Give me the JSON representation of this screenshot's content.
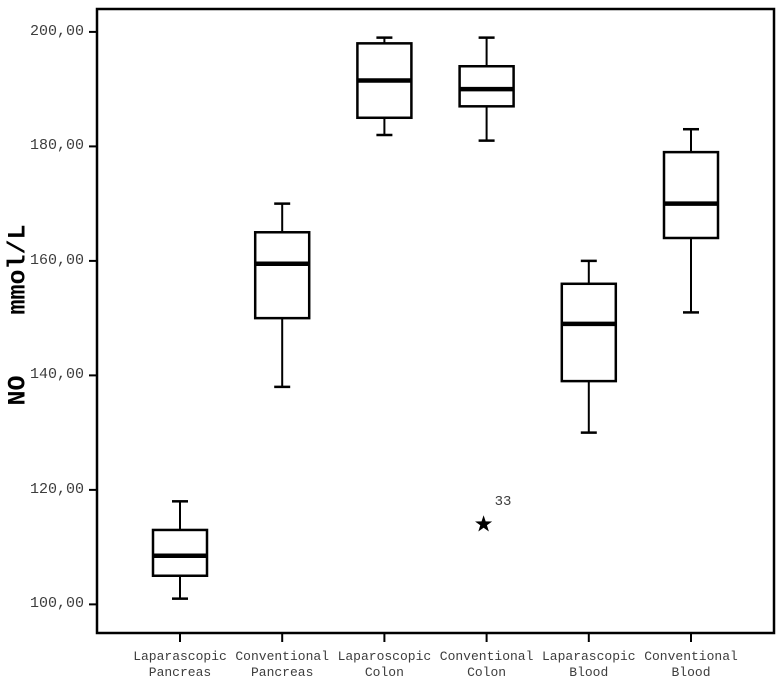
{
  "chart_data": {
    "type": "boxplot",
    "title": "",
    "xlabel": "",
    "ylabel": "NO mmol/L",
    "ylim": [
      95,
      204
    ],
    "yticks": [
      100,
      120,
      140,
      160,
      180,
      200
    ],
    "ytick_labels": [
      "100,00",
      "120,00",
      "140,00",
      "160,00",
      "180,00",
      "200,00"
    ],
    "grid": false,
    "legend": "none",
    "colors": {
      "line": "#000000",
      "box_fill": "#ffffff",
      "text": "#3d3d3d"
    },
    "series": [
      {
        "category": "Laparascopic Pancreas",
        "label_lines": [
          "Laparascopic",
          "Pancreas"
        ],
        "min": 101,
        "q1": 105,
        "median": 108.5,
        "q3": 113,
        "max": 118,
        "outliers": []
      },
      {
        "category": "Conventional Pancreas",
        "label_lines": [
          "Conventional",
          "Pancreas"
        ],
        "min": 138,
        "q1": 150,
        "median": 159.5,
        "q3": 165,
        "max": 170,
        "outliers": []
      },
      {
        "category": "Laparoscopic Colon",
        "label_lines": [
          "Laparoscopic",
          "Colon"
        ],
        "min": 182,
        "q1": 185,
        "median": 191.5,
        "q3": 198,
        "max": 199,
        "outliers": []
      },
      {
        "category": "Conventional Colon",
        "label_lines": [
          "Conventional",
          "Colon"
        ],
        "min": 181,
        "q1": 187,
        "median": 190,
        "q3": 194,
        "max": 199,
        "outliers": [
          {
            "value": 114,
            "label": "33",
            "marker": "extreme-star"
          }
        ]
      },
      {
        "category": "Laparascopic Blood",
        "label_lines": [
          "Laparascopic",
          "Blood"
        ],
        "min": 130,
        "q1": 139,
        "median": 149,
        "q3": 156,
        "max": 160,
        "outliers": []
      },
      {
        "category": "Conventional Blood",
        "label_lines": [
          "Conventional",
          "Blood"
        ],
        "min": 151,
        "q1": 164,
        "median": 170,
        "q3": 179,
        "max": 183,
        "outliers": []
      }
    ]
  }
}
